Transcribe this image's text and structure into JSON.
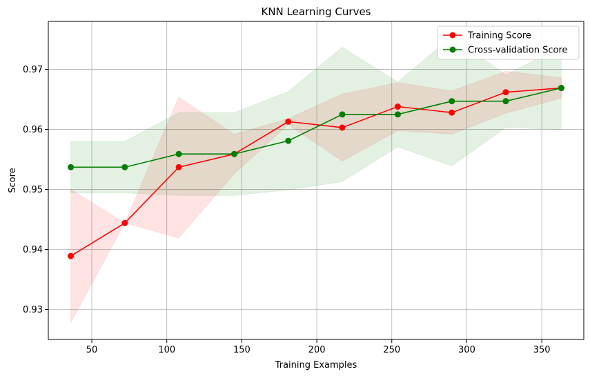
{
  "chart_data": {
    "type": "line",
    "title": "KNN Learning Curves",
    "xlabel": "Training Examples",
    "ylabel": "Score",
    "xlim": [
      21,
      378
    ],
    "ylim": [
      0.925,
      0.978
    ],
    "xticks": [
      50,
      100,
      150,
      200,
      250,
      300,
      350
    ],
    "yticks": [
      0.93,
      0.94,
      0.95,
      0.96,
      0.97
    ],
    "grid": true,
    "legend_position": "top-right",
    "x": [
      36,
      72,
      108,
      145,
      181,
      217,
      254,
      290,
      326,
      363
    ],
    "series": [
      {
        "name": "Training Score",
        "color": "#ff0000",
        "band_color": "#ff0000",
        "values": [
          0.9389,
          0.9444,
          0.9537,
          0.9559,
          0.9613,
          0.9603,
          0.9638,
          0.9628,
          0.9662,
          0.9669
        ],
        "lower": [
          0.9278,
          0.9444,
          0.9419,
          0.9526,
          0.9608,
          0.9547,
          0.9598,
          0.9592,
          0.9627,
          0.9652
        ],
        "upper": [
          0.95,
          0.9444,
          0.9654,
          0.9592,
          0.9618,
          0.9659,
          0.9678,
          0.9664,
          0.9697,
          0.9686
        ]
      },
      {
        "name": "Cross-validation Score",
        "color": "#008000",
        "band_color": "#008000",
        "values": [
          0.9537,
          0.9537,
          0.9559,
          0.9559,
          0.9581,
          0.9625,
          0.9625,
          0.9647,
          0.9647,
          0.9669
        ],
        "lower": [
          0.9494,
          0.9494,
          0.949,
          0.949,
          0.9499,
          0.9513,
          0.9571,
          0.9539,
          0.9603,
          0.96
        ],
        "upper": [
          0.958,
          0.958,
          0.9628,
          0.9628,
          0.9663,
          0.9737,
          0.9679,
          0.9755,
          0.9691,
          0.9738
        ]
      }
    ]
  }
}
